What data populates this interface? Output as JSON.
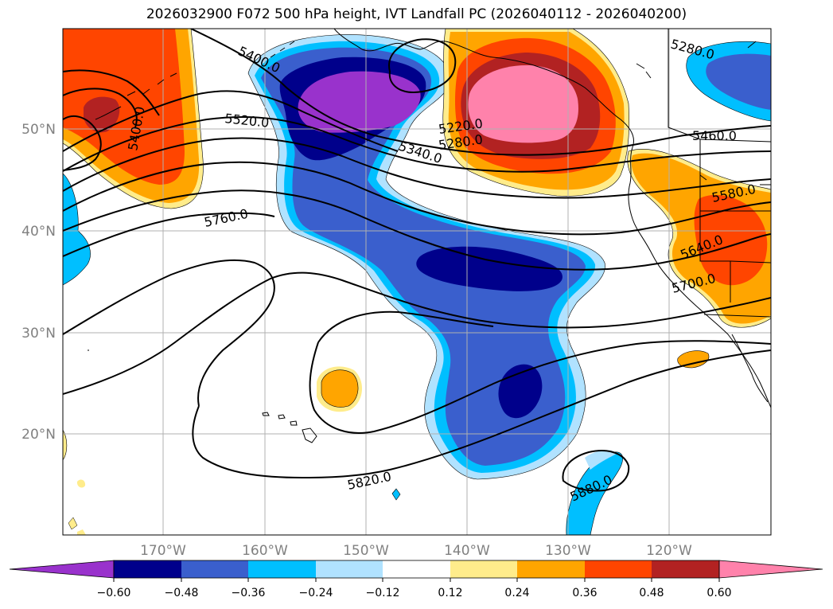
{
  "title": "2026032900 F072 500 hPa height, IVT Landfall PC (2026040112 - 2026040200)",
  "map": {
    "lat_labels": [
      "50°N",
      "40°N",
      "30°N",
      "20°N"
    ],
    "lon_labels": [
      "170°W",
      "160°W",
      "150°W",
      "140°W",
      "130°W",
      "120°W"
    ],
    "grid": true
  },
  "contours": {
    "color": "#000000",
    "labels": [
      "5400.0",
      "5400.0",
      "5520.0",
      "5760.0",
      "5220.0",
      "5280.0",
      "5340.0",
      "5280.0",
      "5460.0",
      "5580.0",
      "5640.0",
      "5700.0",
      "5820.0",
      "5880.0"
    ]
  },
  "colorbar": {
    "tick_labels": [
      "−0.60",
      "−0.48",
      "−0.36",
      "−0.24",
      "−0.12",
      "0.12",
      "0.24",
      "0.36",
      "0.48",
      "0.60"
    ],
    "colors": [
      "#9932cc",
      "#00008b",
      "#3a5fcd",
      "#00bfff",
      "#b0e2ff",
      "#ffffff",
      "#ffec8b",
      "#ffa500",
      "#ff4500",
      "#b22222",
      "#ff82ab"
    ]
  }
}
